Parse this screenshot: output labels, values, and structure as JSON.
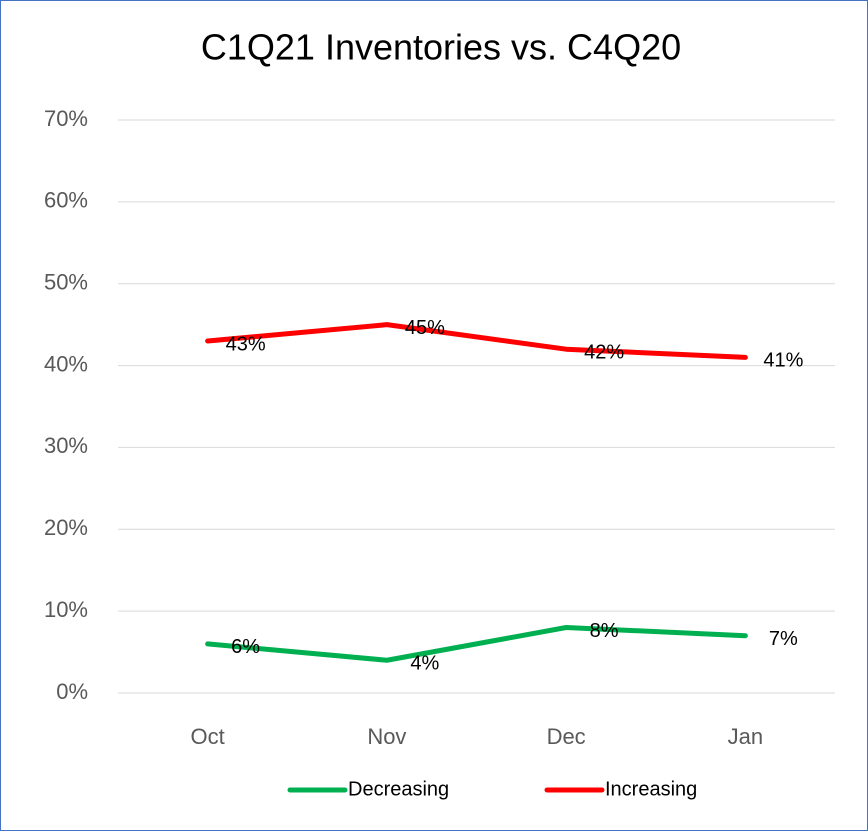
{
  "chart_data": {
    "type": "line",
    "title": "C1Q21 Inventories vs. C4Q20",
    "categories": [
      "Oct",
      "Nov",
      "Dec",
      "Jan"
    ],
    "series": [
      {
        "name": "Decreasing",
        "color": "#00b050",
        "values": [
          6,
          4,
          8,
          7
        ],
        "value_labels": [
          "6%",
          "4%",
          "8%",
          "7%"
        ]
      },
      {
        "name": "Increasing",
        "color": "#ff0000",
        "values": [
          43,
          45,
          42,
          41
        ],
        "value_labels": [
          "43%",
          "45%",
          "42%",
          "41%"
        ]
      }
    ],
    "ylim": [
      0,
      70
    ],
    "yticks": [
      {
        "value": 0,
        "label": "0%"
      },
      {
        "value": 10,
        "label": "10%"
      },
      {
        "value": 20,
        "label": "20%"
      },
      {
        "value": 30,
        "label": "30%"
      },
      {
        "value": 40,
        "label": "40%"
      },
      {
        "value": 50,
        "label": "50%"
      },
      {
        "value": 60,
        "label": "60%"
      },
      {
        "value": 70,
        "label": "70%"
      }
    ],
    "grid": true,
    "legend": "bottom"
  }
}
